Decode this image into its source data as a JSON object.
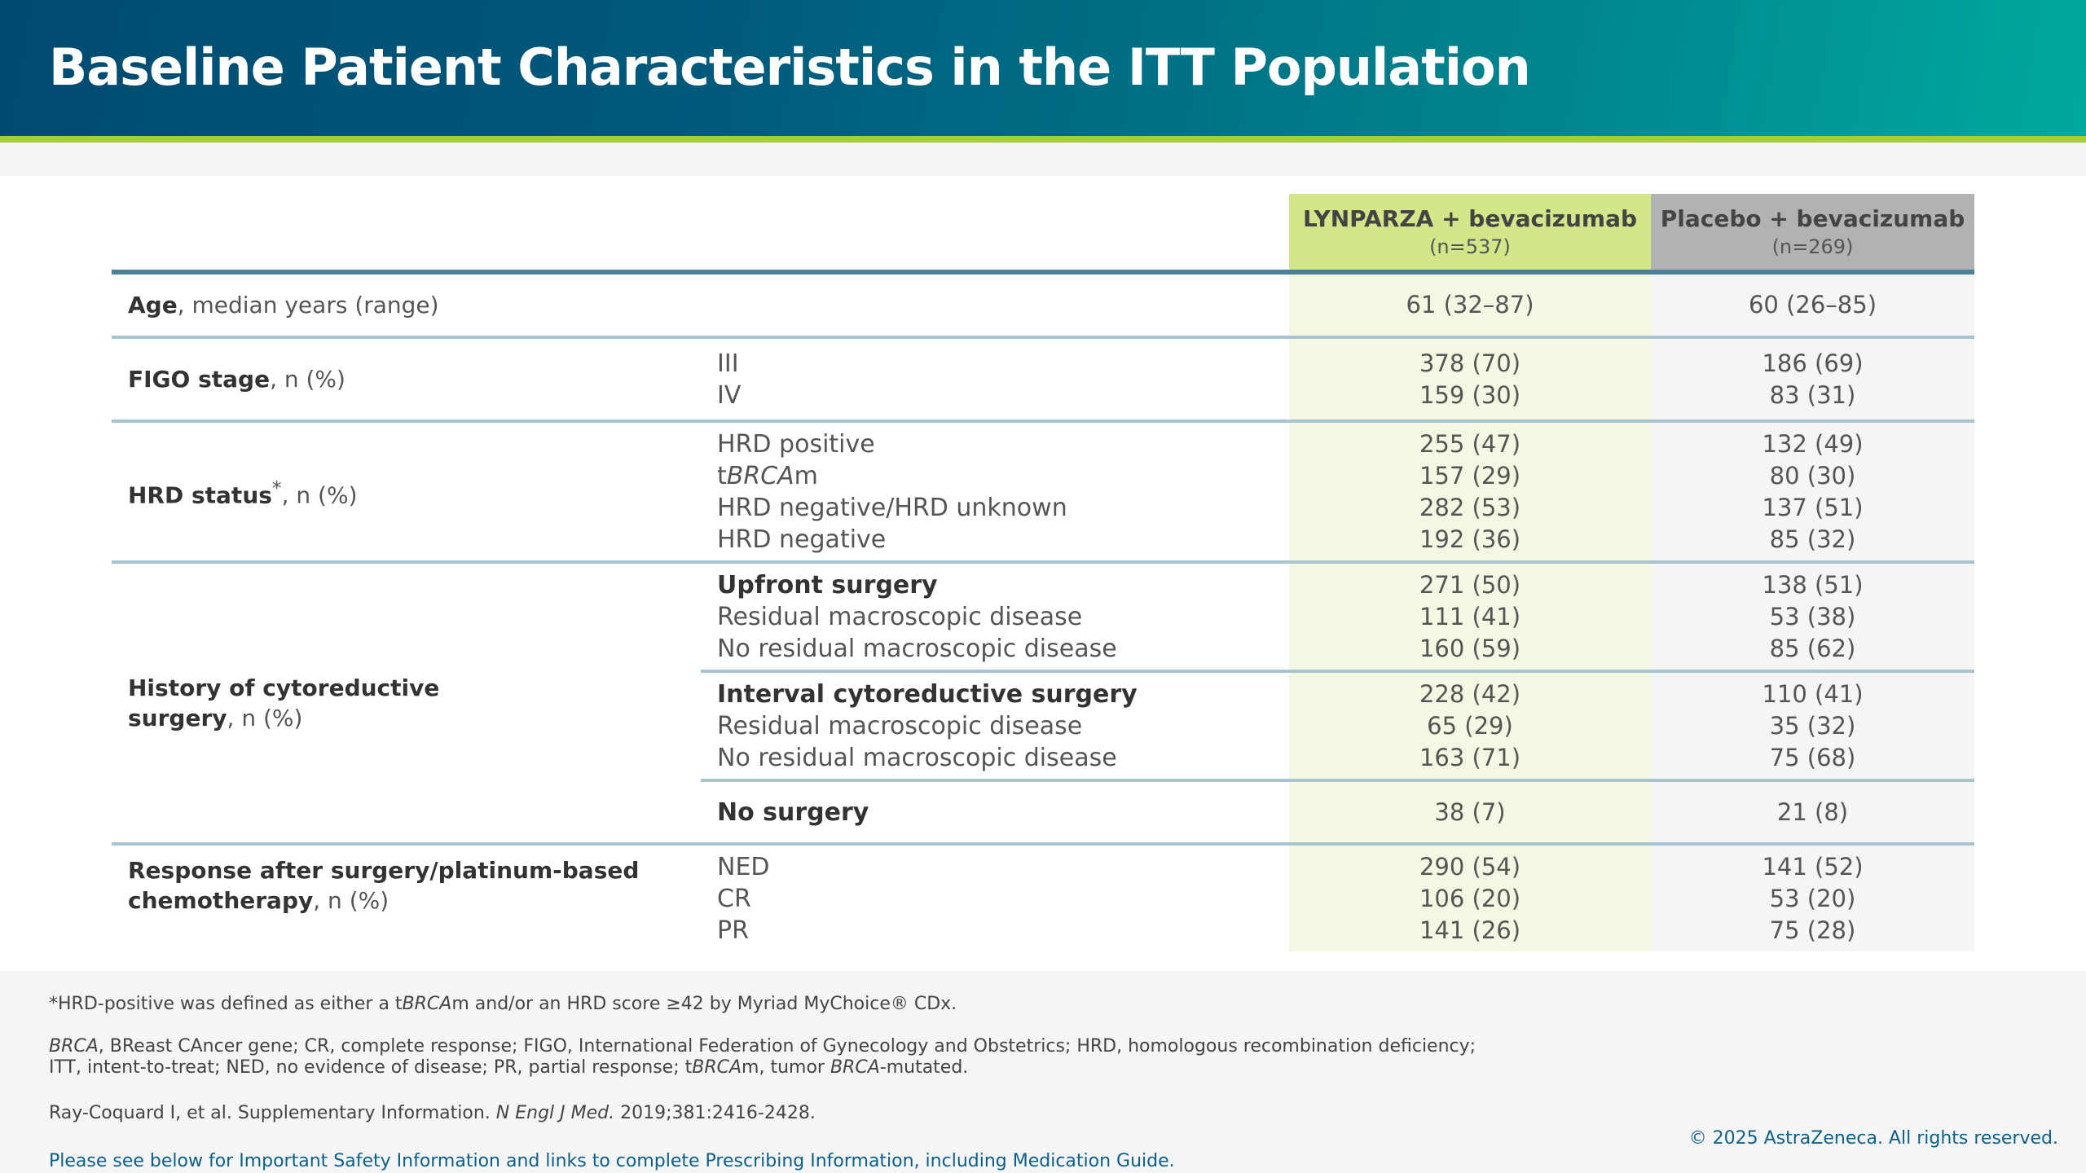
{
  "title": "Baseline Patient Characteristics in the ITT Population",
  "columns": [
    {
      "name": "LYNPARZA + bevacizumab",
      "n": "(n=537)"
    },
    {
      "name": "Placebo + bevacizumab",
      "n": "(n=269)"
    }
  ],
  "age": {
    "label_bold": "Age",
    "label_rest": ", median years (range)",
    "v1": "61 (32–87)",
    "v2": "60 (26–85)"
  },
  "figo": {
    "label_bold": "FIGO stage",
    "label_rest": ", n (%)",
    "rows": [
      {
        "sub": "III",
        "v1": "378 (70)",
        "v2": "186 (69)"
      },
      {
        "sub": "IV",
        "v1": "159 (30)",
        "v2": "83 (31)"
      }
    ]
  },
  "hrd": {
    "label_bold": "HRD status",
    "sup": "*",
    "label_rest": ", n (%)",
    "rows": [
      {
        "sub": "HRD positive",
        "v1": "255 (47)",
        "v2": "132 (49)"
      },
      {
        "sub_pre": "t",
        "sub_it": "BRCA",
        "sub_post": "m",
        "v1": "157 (29)",
        "v2": "80 (30)"
      },
      {
        "sub": "HRD negative/HRD unknown",
        "v1": "282 (53)",
        "v2": "137 (51)"
      },
      {
        "sub": "HRD negative",
        "v1": "192 (36)",
        "v2": "85 (32)"
      }
    ]
  },
  "surgery": {
    "label_bold1": "History of cytoreductive",
    "label_bold2": "surgery",
    "label_rest": ", n (%)",
    "upfront": [
      {
        "sub": "Upfront surgery",
        "v1": "271 (50)",
        "v2": "138 (51)"
      },
      {
        "sub": "Residual macroscopic disease",
        "v1": "111 (41)",
        "v2": "53 (38)"
      },
      {
        "sub": "No residual macroscopic disease",
        "v1": "160 (59)",
        "v2": "85 (62)"
      }
    ],
    "interval": [
      {
        "sub": "Interval cytoreductive surgery",
        "v1": "228 (42)",
        "v2": "110 (41)"
      },
      {
        "sub": "Residual macroscopic disease",
        "v1": "65 (29)",
        "v2": "35 (32)"
      },
      {
        "sub": "No residual macroscopic disease",
        "v1": "163 (71)",
        "v2": "75 (68)"
      }
    ],
    "none": {
      "sub": "No surgery",
      "v1": "38 (7)",
      "v2": "21 (8)"
    }
  },
  "response": {
    "label_bold1": "Response after surgery/platinum-based",
    "label_bold2": "chemotherapy",
    "label_rest": ", n (%)",
    "rows": [
      {
        "sub": "NED",
        "v1": "290 (54)",
        "v2": "141 (52)"
      },
      {
        "sub": "CR",
        "v1": "106 (20)",
        "v2": "53 (20)"
      },
      {
        "sub": "PR",
        "v1": "141 (26)",
        "v2": "75 (28)"
      }
    ]
  },
  "footnotes": {
    "f1_a": "*HRD-positive was defined as either a t",
    "f1_it": "BRCA",
    "f1_b": "m and/or an HRD score ≥42 by Myriad MyChoice® CDx.",
    "abbr1_it": "BRCA",
    "abbr1": ", BReast CAncer gene; CR, complete response; FIGO, International Federation of Gynecology and Obstetrics; HRD, homologous recombination deficiency;",
    "abbr2_a": "ITT, intent-to-treat; NED, no evidence of disease; PR, partial response; t",
    "abbr2_it1": "BRCA",
    "abbr2_b": "m, tumor ",
    "abbr2_it2": "BRCA",
    "abbr2_c": "-mutated.",
    "ref_a": "Ray-Coquard I, et al. Supplementary Information. ",
    "ref_it": "N Engl J Med.",
    "ref_b": " 2019;381:2416-2428.",
    "link": "Please see below for Important Safety Information and links to complete Prescribing Information, including Medication Guide.",
    "copyright": "© 2025 AstraZeneca. All rights reserved."
  },
  "colors": {
    "header_start": "#004a70",
    "header_end": "#00a99d",
    "accent_green": "#a5cd39",
    "col1_header": "#d4e68a",
    "col2_header": "#b1b3b3",
    "link": "#0c5f8a"
  }
}
